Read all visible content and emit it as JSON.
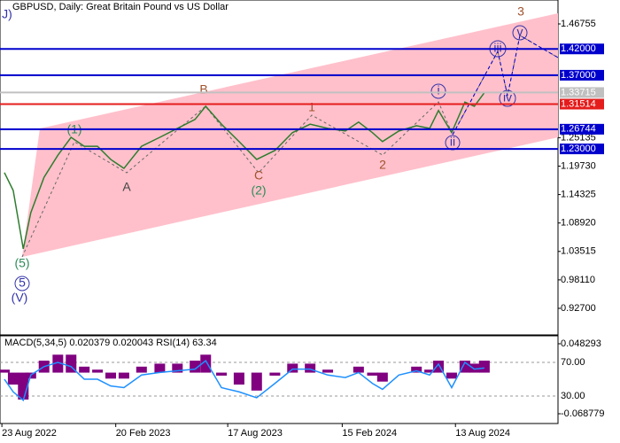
{
  "chart_data": [
    {
      "type": "line",
      "title": "GBPUSD, Daily:  Great Britain Pound vs US Dollar",
      "xlim": [
        "2022-08-20",
        "2025-01-23"
      ],
      "xticks": [
        {
          "value": "2022-08-23",
          "label": "23 Aug 2022"
        },
        {
          "value": "2023-02-20",
          "label": "20 Feb 2023"
        },
        {
          "value": "2023-08-17",
          "label": "17 Aug 2023"
        },
        {
          "value": "2024-02-15",
          "label": "15 Feb 2024"
        },
        {
          "value": "2024-08-13",
          "label": "13 Aug 2024"
        }
      ],
      "ylim": [
        0.8765,
        1.513
      ],
      "yticks": [
        {
          "value": 1.46755,
          "label": "1.46755"
        },
        {
          "value": 1.25135,
          "label": "1.25135"
        },
        {
          "value": 1.1973,
          "label": "1.19730"
        },
        {
          "value": 1.14325,
          "label": "1.14325"
        },
        {
          "value": 1.0892,
          "label": "1.08920"
        },
        {
          "value": 1.03515,
          "label": "1.03515"
        },
        {
          "value": 0.9811,
          "label": "0.98110"
        },
        {
          "value": 0.927,
          "label": "0.92700"
        }
      ],
      "levels": [
        {
          "value": 1.42,
          "label": "1.42000",
          "color": "#0000cd"
        },
        {
          "value": 1.37,
          "label": "1.37000",
          "color": "#0000cd"
        },
        {
          "value": 1.33715,
          "label": "1.33715",
          "color": "#c0c0c0"
        },
        {
          "value": 1.31514,
          "label": "1.31514",
          "color": "#e51c1c"
        },
        {
          "value": 1.26744,
          "label": "1.26744",
          "color": "#0000cd"
        },
        {
          "value": 1.23,
          "label": "1.23000",
          "color": "#0000cd"
        }
      ],
      "series": [
        {
          "name": "GBPUSD",
          "color": "#2f7d2f",
          "x": [
            "2022-08-27",
            "2022-09-10",
            "2022-09-26",
            "2022-10-08",
            "2022-10-29",
            "2022-11-20",
            "2022-12-11",
            "2023-01-01",
            "2023-01-22",
            "2023-02-12",
            "2023-03-05",
            "2023-04-02",
            "2023-05-01",
            "2023-05-29",
            "2023-06-26",
            "2023-07-13",
            "2023-08-07",
            "2023-09-04",
            "2023-10-02",
            "2023-10-31",
            "2023-11-28",
            "2023-12-26",
            "2024-01-23",
            "2024-02-20",
            "2024-03-12",
            "2024-04-03",
            "2024-04-19",
            "2024-05-15",
            "2024-06-12",
            "2024-07-03",
            "2024-07-17",
            "2024-08-07",
            "2024-08-28",
            "2024-09-12",
            "2024-09-28"
          ],
          "values": [
            1.185,
            1.151,
            1.04,
            1.109,
            1.176,
            1.218,
            1.252,
            1.235,
            1.235,
            1.21,
            1.193,
            1.235,
            1.252,
            1.269,
            1.286,
            1.311,
            1.277,
            1.244,
            1.21,
            1.227,
            1.261,
            1.277,
            1.269,
            1.264,
            1.281,
            1.261,
            1.244,
            1.264,
            1.274,
            1.269,
            1.303,
            1.261,
            1.319,
            1.311,
            1.337
          ]
        }
      ],
      "annotations": [
        "J)",
        "3",
        "(1)",
        "A",
        "B",
        "C",
        "(2)",
        "1",
        "2",
        "i",
        "ii",
        "iii",
        "iv",
        "v",
        "(5)",
        "5",
        "(V)"
      ]
    },
    {
      "type": "macd_rsi",
      "title": "MACD(5,34,5) 0.020379 0.020043 RSI(14) 63.34",
      "ylim": [
        -0.0851,
        0.0616
      ],
      "yticks": [
        {
          "value": 0.048293,
          "label": "0.048293"
        },
        {
          "value": -0.068779,
          "label": "-0.068779"
        }
      ],
      "y2lim": [
        -2.6,
        101.6
      ],
      "y2ticks": [
        {
          "value": 70,
          "label": "70.00"
        },
        {
          "value": 30,
          "label": "30.00"
        }
      ],
      "series": [
        {
          "name": "MACD",
          "color": "#800080",
          "values": [
            0.005,
            -0.02,
            -0.045,
            -0.01,
            0.02,
            0.03,
            0.03,
            0.01,
            0.005,
            -0.01,
            -0.01,
            0.01,
            0.015,
            0.015,
            0.02,
            0.03,
            -0.005,
            -0.02,
            -0.03,
            -0.005,
            0.015,
            0.015,
            0.005,
            0.0,
            0.01,
            -0.005,
            -0.015,
            0.0,
            0.01,
            0.005,
            0.02,
            -0.01,
            0.02,
            0.015,
            0.02
          ]
        },
        {
          "name": "RSI",
          "color": "#1e90ff",
          "axis": "y2",
          "values": [
            50,
            35,
            25,
            55,
            65,
            70,
            65,
            50,
            50,
            42,
            40,
            55,
            58,
            60,
            62,
            72,
            40,
            35,
            28,
            45,
            62,
            62,
            55,
            52,
            58,
            45,
            38,
            55,
            60,
            55,
            68,
            40,
            70,
            62,
            63.34
          ]
        }
      ]
    }
  ]
}
